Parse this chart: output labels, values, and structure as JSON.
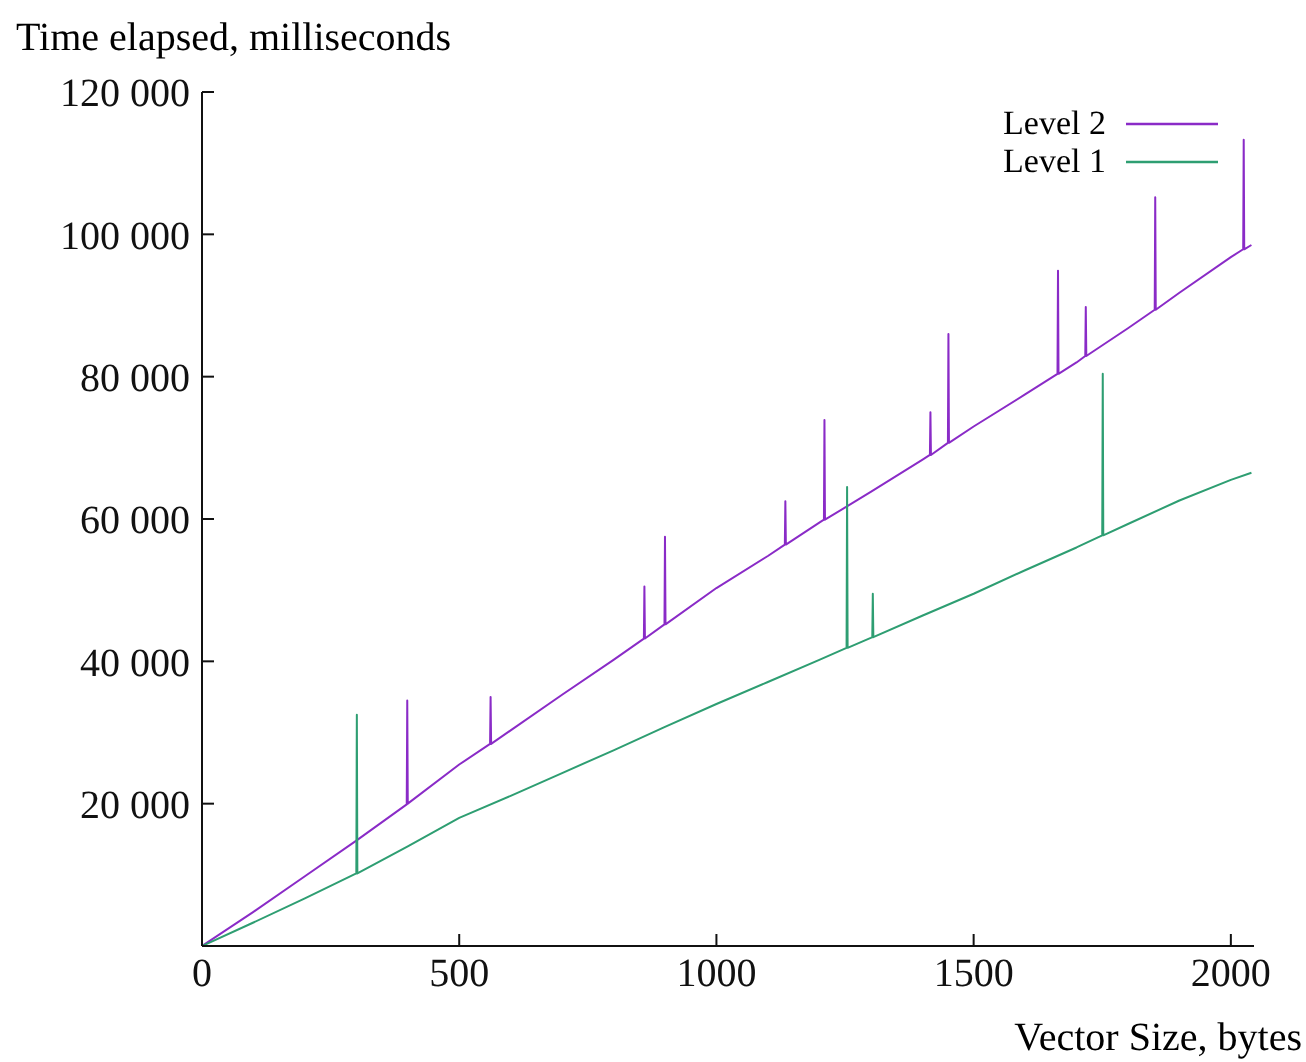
{
  "chart_data": {
    "type": "line",
    "title": "Time elapsed, milliseconds",
    "xlabel": "Vector Size, bytes",
    "xlim": [
      0,
      2045
    ],
    "xticks": [
      0,
      500,
      1000,
      1500,
      2000
    ],
    "ylim": [
      0,
      120000
    ],
    "yticks": [
      {
        "value": 20000,
        "label": "20 000"
      },
      {
        "value": 40000,
        "label": "40 000"
      },
      {
        "value": 60000,
        "label": "60 000"
      },
      {
        "value": 80000,
        "label": "80 000"
      },
      {
        "value": 100000,
        "label": "100 000"
      },
      {
        "value": 120000,
        "label": "120 000"
      }
    ],
    "grid": false,
    "legend": "top right",
    "line_style": "solid",
    "marker": "none",
    "series": [
      {
        "name": "Level 2",
        "color": "#8a2bc7",
        "x": [
          0,
          100,
          200,
          300,
          398,
          399,
          400,
          500,
          560,
          561,
          562,
          600,
          700,
          800,
          859,
          860,
          861,
          899,
          900,
          901,
          1000,
          1100,
          1133,
          1134,
          1135,
          1200,
          1209,
          1210,
          1211,
          1300,
          1400,
          1415,
          1416,
          1417,
          1450,
          1451,
          1452,
          1500,
          1600,
          1663,
          1664,
          1665,
          1700,
          1717,
          1718,
          1719,
          1800,
          1852,
          1853,
          1854,
          1900,
          2000,
          2024,
          2025,
          2026,
          2040
        ],
        "values": [
          0,
          4800,
          9800,
          14800,
          19900,
          34500,
          20000,
          25500,
          28400,
          35000,
          28400,
          30300,
          35300,
          40200,
          43200,
          50500,
          43200,
          45200,
          57500,
          45200,
          50300,
          54800,
          56400,
          62500,
          56400,
          59500,
          59900,
          73900,
          59900,
          63800,
          68300,
          69000,
          75000,
          69000,
          70700,
          86000,
          70700,
          73000,
          77500,
          80400,
          94900,
          80400,
          82000,
          82900,
          89800,
          82900,
          86800,
          89400,
          105200,
          89400,
          91800,
          96800,
          97900,
          113300,
          97900,
          98500
        ]
      },
      {
        "name": "Level 1",
        "color": "#2e9e72",
        "x": [
          0,
          100,
          200,
          300,
          301,
          302,
          400,
          500,
          600,
          700,
          800,
          900,
          1000,
          1100,
          1200,
          1253,
          1254,
          1255,
          1300,
          1303,
          1304,
          1305,
          1400,
          1500,
          1600,
          1700,
          1750,
          1751,
          1752,
          1800,
          1900,
          2000,
          2040
        ],
        "values": [
          0,
          3300,
          6700,
          10200,
          32500,
          10200,
          14000,
          18000,
          21100,
          24300,
          27500,
          30800,
          34000,
          37100,
          40200,
          41900,
          64500,
          41900,
          43300,
          43400,
          49500,
          43400,
          46400,
          49500,
          52800,
          56000,
          57700,
          80400,
          57700,
          59300,
          62600,
          65500,
          66500
        ]
      }
    ]
  }
}
